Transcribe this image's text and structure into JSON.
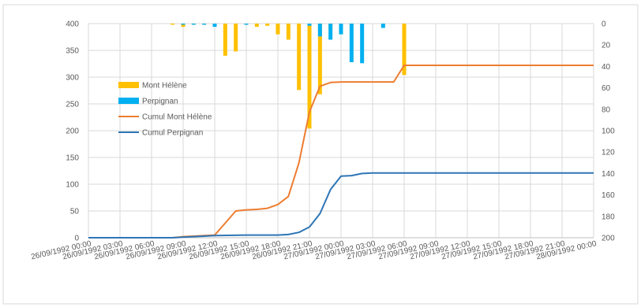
{
  "chart_data": {
    "type": "bar+line",
    "title": "",
    "xlabel": "",
    "ylabel_left": "",
    "ylabel_right": "",
    "left_axis": {
      "min": 0,
      "max": 400,
      "step": 50
    },
    "right_axis": {
      "min": 0,
      "max": 200,
      "step": 20,
      "reversed": true
    },
    "x_axis": {
      "start": "26/09/1992 00:00",
      "end": "28/09/1992 00:00",
      "tick_interval_hours": 3,
      "tick_labels": [
        "26/09/1992 00:00",
        "26/09/1992 03:00",
        "26/09/1992 06:00",
        "26/09/1992 09:00",
        "26/09/1992 12:00",
        "26/09/1992 15:00",
        "26/09/1992 18:00",
        "26/09/1992 21:00",
        "27/09/1992 00:00",
        "27/09/1992 03:00",
        "27/09/1992 06:00",
        "27/09/1992 09:00",
        "27/09/1992 12:00",
        "27/09/1992 15:00",
        "27/09/1992 18:00",
        "27/09/1992 21:00",
        "28/09/1992 00:00"
      ]
    },
    "grid": true,
    "legend_position": "left-middle",
    "series": [
      {
        "name": "Mont Hélène",
        "kind": "bar",
        "axis": "right",
        "color": "#FFC000",
        "points": [
          [
            "26/09/1992 08:00",
            1
          ],
          [
            "26/09/1992 09:00",
            3
          ],
          [
            "26/09/1992 10:00",
            1
          ],
          [
            "26/09/1992 11:00",
            1
          ],
          [
            "26/09/1992 12:00",
            2
          ],
          [
            "26/09/1992 13:00",
            30
          ],
          [
            "26/09/1992 14:00",
            26
          ],
          [
            "26/09/1992 15:00",
            1
          ],
          [
            "26/09/1992 16:00",
            3
          ],
          [
            "26/09/1992 17:00",
            2
          ],
          [
            "26/09/1992 18:00",
            10
          ],
          [
            "26/09/1992 19:00",
            15
          ],
          [
            "26/09/1992 20:00",
            62
          ],
          [
            "26/09/1992 21:00",
            98
          ],
          [
            "26/09/1992 22:00",
            66
          ],
          [
            "26/09/1992 23:00",
            6
          ],
          [
            "27/09/1992 00:00",
            1
          ],
          [
            "27/09/1992 01:00",
            1
          ],
          [
            "27/09/1992 06:00",
            48
          ]
        ]
      },
      {
        "name": "Perpignan",
        "kind": "bar",
        "axis": "right",
        "color": "#00B0F0",
        "points": [
          [
            "26/09/1992 09:00",
            1
          ],
          [
            "26/09/1992 10:00",
            1
          ],
          [
            "26/09/1992 11:00",
            1
          ],
          [
            "26/09/1992 12:00",
            3
          ],
          [
            "26/09/1992 15:00",
            1
          ],
          [
            "26/09/1992 21:00",
            2
          ],
          [
            "26/09/1992 22:00",
            12
          ],
          [
            "26/09/1992 23:00",
            15
          ],
          [
            "27/09/1992 00:00",
            10
          ],
          [
            "27/09/1992 01:00",
            36
          ],
          [
            "27/09/1992 02:00",
            37
          ],
          [
            "27/09/1992 04:00",
            4
          ]
        ]
      },
      {
        "name": "Cumul Mont Hélène",
        "kind": "line",
        "axis": "left",
        "color": "#ED7D31",
        "points": [
          [
            "26/09/1992 00:00",
            0
          ],
          [
            "26/09/1992 08:00",
            0
          ],
          [
            "26/09/1992 09:00",
            2
          ],
          [
            "26/09/1992 10:00",
            3
          ],
          [
            "26/09/1992 12:00",
            5
          ],
          [
            "26/09/1992 14:00",
            50
          ],
          [
            "26/09/1992 15:00",
            52
          ],
          [
            "26/09/1992 16:00",
            53
          ],
          [
            "26/09/1992 17:00",
            55
          ],
          [
            "26/09/1992 18:00",
            62
          ],
          [
            "26/09/1992 19:00",
            77
          ],
          [
            "26/09/1992 20:00",
            140
          ],
          [
            "26/09/1992 21:00",
            235
          ],
          [
            "26/09/1992 22:00",
            283
          ],
          [
            "26/09/1992 23:00",
            290
          ],
          [
            "27/09/1992 00:00",
            291
          ],
          [
            "27/09/1992 05:00",
            291
          ],
          [
            "27/09/1992 06:00",
            322
          ],
          [
            "28/09/1992 00:00",
            322
          ]
        ]
      },
      {
        "name": "Cumul Perpignan",
        "kind": "line",
        "axis": "left",
        "color": "#2E75B6",
        "points": [
          [
            "26/09/1992 00:00",
            0
          ],
          [
            "26/09/1992 08:00",
            0
          ],
          [
            "26/09/1992 09:00",
            1
          ],
          [
            "26/09/1992 12:00",
            4
          ],
          [
            "26/09/1992 15:00",
            5
          ],
          [
            "26/09/1992 18:00",
            5
          ],
          [
            "26/09/1992 19:00",
            6
          ],
          [
            "26/09/1992 20:00",
            10
          ],
          [
            "26/09/1992 21:00",
            20
          ],
          [
            "26/09/1992 22:00",
            45
          ],
          [
            "26/09/1992 23:00",
            90
          ],
          [
            "27/09/1992 00:00",
            115
          ],
          [
            "27/09/1992 01:00",
            116
          ],
          [
            "27/09/1992 02:00",
            120
          ],
          [
            "27/09/1992 03:00",
            121
          ],
          [
            "28/09/1992 00:00",
            121
          ]
        ]
      }
    ]
  }
}
